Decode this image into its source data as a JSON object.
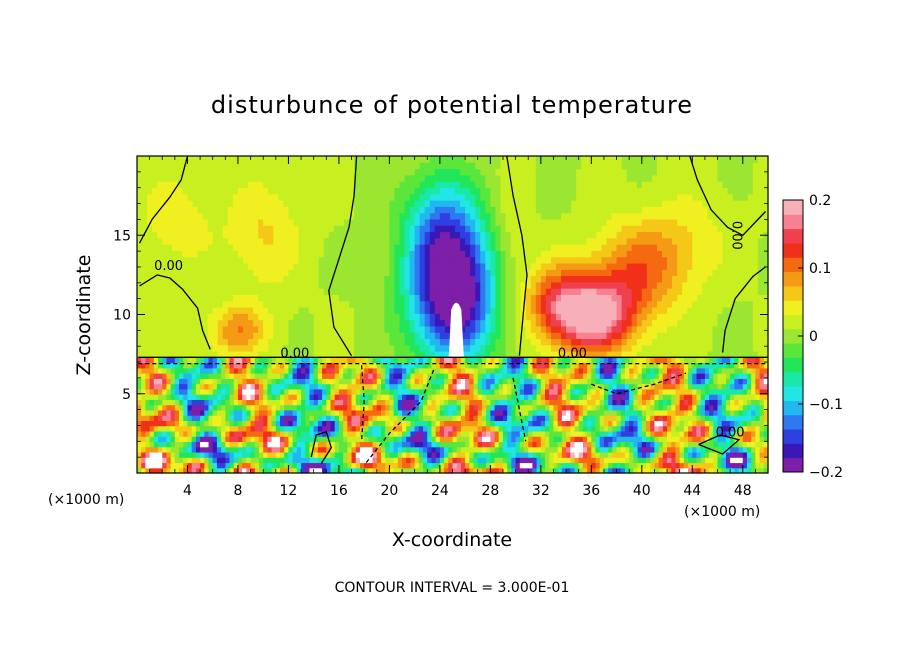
{
  "chart_data": {
    "type": "heatmap",
    "title": "disturbunce of potential temperature",
    "xlabel": "X-coordinate",
    "ylabel": "Z-coordinate",
    "x_unit": "(×1000 m)",
    "y_unit": "(×1000 m)",
    "xlim": [
      0,
      50
    ],
    "ylim": [
      0,
      20
    ],
    "x_ticks": [
      4,
      8,
      12,
      16,
      20,
      24,
      28,
      32,
      36,
      40,
      44,
      48
    ],
    "y_ticks": [
      5,
      10,
      15
    ],
    "colorbar": {
      "range": [
        -0.2,
        0.2
      ],
      "ticks": [
        -0.2,
        -0.1,
        0,
        0.1,
        0.2
      ],
      "tick_labels": [
        "−0.2",
        "−0.1",
        "0",
        "0.1",
        "0.2"
      ],
      "colors": [
        "#7d1fa8",
        "#3a18b8",
        "#2f3fe0",
        "#2e78f0",
        "#21b8f0",
        "#22e6e6",
        "#19e8a8",
        "#22e65a",
        "#5ae63a",
        "#9ae630",
        "#c8f020",
        "#f0f020",
        "#f5c818",
        "#f59a14",
        "#f56a10",
        "#f03018",
        "#f04050",
        "#f88090",
        "#f8b0b8"
      ]
    },
    "contour_labels": [
      {
        "text": "0.00",
        "x": 2.5,
        "z": 12.8
      },
      {
        "text": "0.00",
        "x": 47.2,
        "z": 15.0,
        "rotate": 90
      },
      {
        "text": "0.00",
        "x": 12.5,
        "z": 7.3
      },
      {
        "text": "0.00",
        "x": 34.5,
        "z": 7.3
      },
      {
        "text": "0.00",
        "x": 47.0,
        "z": 2.3
      }
    ],
    "field": {
      "base": 0.01,
      "features": [
        {
          "x": 25.0,
          "z": 11.5,
          "sx": 3.4,
          "sz": 4.4,
          "v": -0.24
        },
        {
          "x": 24.0,
          "z": 16.0,
          "sx": 2.8,
          "sz": 3.2,
          "v": -0.08
        },
        {
          "x": 36.0,
          "z": 10.0,
          "sx": 3.4,
          "sz": 2.4,
          "v": 0.2
        },
        {
          "x": 40.0,
          "z": 13.0,
          "sx": 3.8,
          "sz": 3.0,
          "v": 0.09
        },
        {
          "x": 33.0,
          "z": 11.0,
          "sx": 2.2,
          "sz": 2.4,
          "v": 0.07
        },
        {
          "x": 8.0,
          "z": 9.0,
          "sx": 2.4,
          "sz": 1.6,
          "v": 0.08
        },
        {
          "x": 10.0,
          "z": 15.0,
          "sx": 3.0,
          "sz": 3.4,
          "v": 0.045
        },
        {
          "x": 44.0,
          "z": 15.0,
          "sx": 3.4,
          "sz": 3.0,
          "v": 0.025
        },
        {
          "x": 3.0,
          "z": 16.0,
          "sx": 3.0,
          "sz": 3.0,
          "v": 0.035
        },
        {
          "x": 29.5,
          "z": 14.0,
          "sx": 1.6,
          "sz": 4.0,
          "v": 0.03
        }
      ],
      "boundary_z": 7.3
    }
  },
  "contour_note": "CONTOUR INTERVAL = 3.000E-01"
}
